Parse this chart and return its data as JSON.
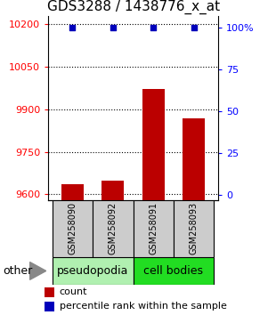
{
  "title": "GDS3288 / 1438776_x_at",
  "samples": [
    "GSM258090",
    "GSM258092",
    "GSM258091",
    "GSM258093"
  ],
  "bar_values": [
    9635,
    9648,
    9972,
    9868
  ],
  "percentile_values": [
    100,
    100,
    100,
    100
  ],
  "ylim_left": [
    9580,
    10230
  ],
  "ylim_right": [
    -3,
    107
  ],
  "yticks_left": [
    9600,
    9750,
    9900,
    10050,
    10200
  ],
  "yticks_right": [
    0,
    25,
    50,
    75,
    100
  ],
  "ytick_labels_right": [
    "0",
    "25",
    "50",
    "75",
    "100%"
  ],
  "bar_color": "#bb0000",
  "percentile_color": "#0000bb",
  "pseudopodia_color": "#b0f0b0",
  "cell_bodies_color": "#22dd22",
  "gray_box_color": "#cccccc",
  "other_label": "other",
  "legend_count_label": "count",
  "legend_percentile_label": "percentile rank within the sample",
  "bar_width": 0.55,
  "plot_bg_color": "#ffffff",
  "title_fontsize": 11,
  "tick_fontsize": 8,
  "sample_fontsize": 7,
  "group_fontsize": 9,
  "legend_fontsize": 8
}
